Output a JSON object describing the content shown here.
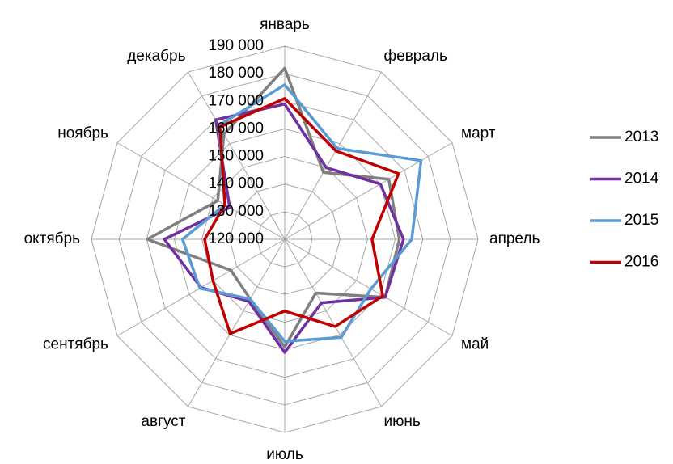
{
  "chart_data": {
    "type": "radar",
    "categories": [
      "январь",
      "февраль",
      "март",
      "апрель",
      "май",
      "июнь",
      "июль",
      "август",
      "сентябрь",
      "октябрь",
      "ноябрь",
      "декабрь"
    ],
    "ylim": [
      120000,
      190000
    ],
    "yticks": [
      {
        "value": 120000,
        "label": "120 000"
      },
      {
        "value": 130000,
        "label": "130 000"
      },
      {
        "value": 140000,
        "label": "140 000"
      },
      {
        "value": 150000,
        "label": "150 000"
      },
      {
        "value": 160000,
        "label": "160 000"
      },
      {
        "value": 170000,
        "label": "170 000"
      },
      {
        "value": 180000,
        "label": "180 000"
      },
      {
        "value": 190000,
        "label": "190 000"
      }
    ],
    "grid": true,
    "legend": "right",
    "series": [
      {
        "name": "2013",
        "color": "#7f7f7f",
        "values": [
          182000,
          148000,
          163500,
          161500,
          162000,
          142500,
          159000,
          145000,
          142500,
          169700,
          148000,
          164000
        ]
      },
      {
        "name": "2014",
        "color": "#7030a0",
        "values": [
          169000,
          150000,
          160000,
          163000,
          162000,
          146600,
          161000,
          146000,
          155000,
          163600,
          143000,
          170000
        ]
      },
      {
        "name": "2015",
        "color": "#5b9bd5",
        "values": [
          176000,
          158000,
          177000,
          166000,
          156000,
          161000,
          157000,
          145000,
          155500,
          157000,
          145000,
          167600
        ]
      },
      {
        "name": "2016",
        "color": "#c00000",
        "values": [
          171000,
          157000,
          167600,
          151600,
          161000,
          156500,
          146000,
          159500,
          150000,
          149000,
          145000,
          167000
        ]
      }
    ]
  }
}
